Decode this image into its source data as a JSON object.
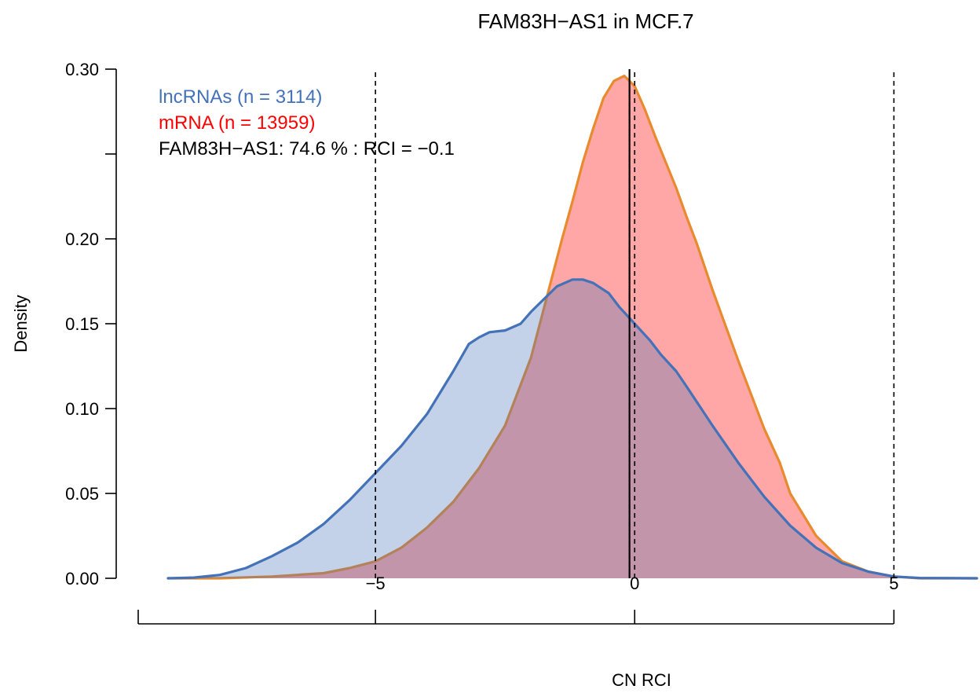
{
  "chart_data": {
    "type": "area",
    "title": "FAM83H−AS1 in MCF.7",
    "xlabel": "CN RCI",
    "ylabel": "Density",
    "xlim": [
      -10,
      6.6
    ],
    "ylim": [
      0,
      0.3
    ],
    "x_ticks": [
      {
        "value": -5,
        "label": "−5"
      },
      {
        "value": 0,
        "label": "0"
      },
      {
        "value": 5,
        "label": "5"
      }
    ],
    "y_ticks": [
      {
        "value": 0,
        "label": "0.00"
      },
      {
        "value": 0.05,
        "label": "0.05"
      },
      {
        "value": 0.1,
        "label": "0.10"
      },
      {
        "value": 0.15,
        "label": "0.15"
      },
      {
        "value": 0.2,
        "label": "0.20"
      },
      {
        "value": 0.25,
        "label": ""
      },
      {
        "value": 0.3,
        "label": "0.30"
      }
    ],
    "grid": false,
    "legend_position": "top-left",
    "legend": [
      {
        "label": "lncRNAs (n = 3114)",
        "color": "#4472b8"
      },
      {
        "label": "mRNA (n = 13959)",
        "color": "#ff0000"
      },
      {
        "label": "FAM83H−AS1: 74.6 % : RCI = −0.1",
        "color": "#000000"
      }
    ],
    "vlines": [
      {
        "x": -5,
        "style": "dashed"
      },
      {
        "x": 0,
        "style": "dashed"
      },
      {
        "x": 5,
        "style": "dashed"
      },
      {
        "x": -0.1,
        "style": "solid"
      }
    ],
    "series": [
      {
        "name": "mRNA",
        "stroke": "#e88a2e",
        "fill": "#ff6b6b",
        "fill_opacity": 0.6,
        "x": [
          -9.0,
          -8.0,
          -7.0,
          -6.0,
          -5.5,
          -5.0,
          -4.5,
          -4.0,
          -3.5,
          -3.0,
          -2.5,
          -2.0,
          -1.7,
          -1.4,
          -1.2,
          -1.0,
          -0.8,
          -0.6,
          -0.4,
          -0.2,
          0.0,
          0.2,
          0.4,
          0.6,
          0.8,
          1.0,
          1.2,
          1.5,
          2.0,
          2.5,
          2.8,
          3.0,
          3.5,
          4.0,
          4.5,
          5.0,
          5.5,
          6.6
        ],
        "y": [
          0.0,
          0.0,
          0.001,
          0.003,
          0.006,
          0.01,
          0.018,
          0.03,
          0.045,
          0.065,
          0.09,
          0.13,
          0.165,
          0.2,
          0.222,
          0.245,
          0.265,
          0.283,
          0.293,
          0.296,
          0.29,
          0.276,
          0.26,
          0.245,
          0.23,
          0.213,
          0.197,
          0.17,
          0.128,
          0.088,
          0.068,
          0.05,
          0.025,
          0.01,
          0.004,
          0.001,
          0.0,
          0.0
        ]
      },
      {
        "name": "lncRNAs",
        "stroke": "#4472b8",
        "fill": "#4472b8",
        "fill_opacity": 0.32,
        "x": [
          -9.0,
          -8.5,
          -8.0,
          -7.5,
          -7.0,
          -6.5,
          -6.0,
          -5.5,
          -5.0,
          -4.5,
          -4.0,
          -3.5,
          -3.2,
          -3.0,
          -2.8,
          -2.5,
          -2.2,
          -2.0,
          -1.8,
          -1.5,
          -1.2,
          -1.0,
          -0.8,
          -0.5,
          -0.3,
          0.0,
          0.3,
          0.5,
          0.8,
          1.0,
          1.5,
          2.0,
          2.5,
          3.0,
          3.5,
          4.0,
          4.5,
          5.0,
          5.5,
          6.6
        ],
        "y": [
          0.0,
          0.0004,
          0.002,
          0.006,
          0.013,
          0.021,
          0.032,
          0.046,
          0.062,
          0.078,
          0.097,
          0.122,
          0.138,
          0.142,
          0.145,
          0.146,
          0.15,
          0.157,
          0.163,
          0.172,
          0.176,
          0.176,
          0.174,
          0.168,
          0.16,
          0.15,
          0.14,
          0.132,
          0.122,
          0.113,
          0.09,
          0.068,
          0.048,
          0.031,
          0.018,
          0.009,
          0.004,
          0.001,
          0.0002,
          0.0
        ]
      }
    ]
  }
}
